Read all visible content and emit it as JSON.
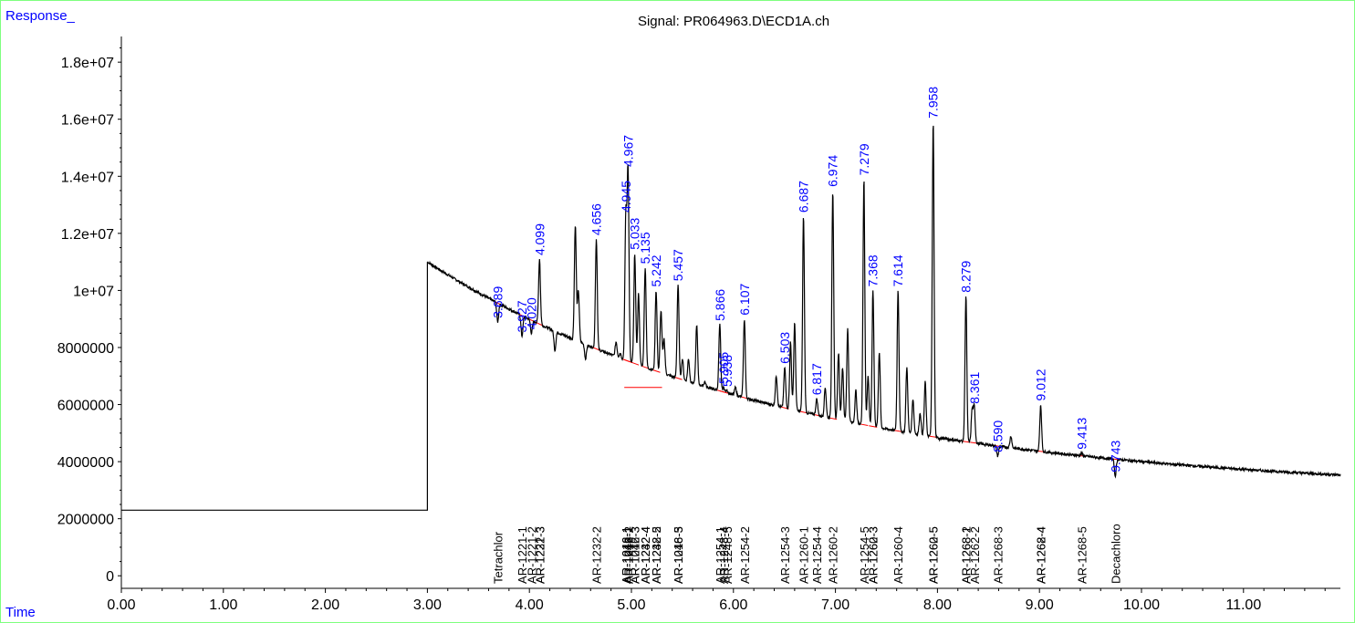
{
  "chart_data": {
    "type": "line",
    "title": "Signal: PR064963.D\\ECD1A.ch",
    "ylabel": "Response_",
    "xlabel": "Time",
    "xlim": [
      0,
      11.95
    ],
    "ylim": [
      -600000,
      18900000
    ],
    "x_ticks": [
      "0.00",
      "1.00",
      "2.00",
      "3.00",
      "4.00",
      "5.00",
      "6.00",
      "7.00",
      "8.00",
      "9.00",
      "10.00",
      "11.00"
    ],
    "x_tick_values": [
      0,
      1,
      2,
      3,
      4,
      5,
      6,
      7,
      8,
      9,
      10,
      11
    ],
    "y_ticks": [
      "0",
      "2000000",
      "4000000",
      "6000000",
      "8000000",
      "1e+07",
      "1.2e+07",
      "1.4e+07",
      "1.6e+07",
      "1.8e+07"
    ],
    "y_tick_values": [
      0,
      2000000,
      4000000,
      6000000,
      8000000,
      10000000,
      12000000,
      14000000,
      16000000,
      18000000
    ],
    "baseline_level": 2300000,
    "trace_start_time": 3.0,
    "trace_start_value": 11000000,
    "trace_end_value": 2900000,
    "labeled_peaks": [
      {
        "rt": 3.689,
        "label": "3.689",
        "height": 8900000
      },
      {
        "rt": 3.927,
        "label": "3.927",
        "height": 8400000
      },
      {
        "rt": 4.02,
        "label": "4.020",
        "height": 8500000
      },
      {
        "rt": 4.099,
        "label": "4.099",
        "height": 11100000
      },
      {
        "rt": 4.656,
        "label": "4.656",
        "height": 11800000
      },
      {
        "rt": 4.945,
        "label": "4.945",
        "height": 12600000
      },
      {
        "rt": 4.967,
        "label": "4.967",
        "height": 14200000
      },
      {
        "rt": 5.033,
        "label": "5.033",
        "height": 11300000
      },
      {
        "rt": 5.135,
        "label": "5.135",
        "height": 10800000
      },
      {
        "rt": 5.242,
        "label": "5.242",
        "height": 10000000
      },
      {
        "rt": 5.457,
        "label": "5.457",
        "height": 10200000
      },
      {
        "rt": 5.866,
        "label": "5.866",
        "height": 8800000
      },
      {
        "rt": 5.905,
        "label": "5.905",
        "height": 6600000
      },
      {
        "rt": 5.938,
        "label": "5.938",
        "height": 6500000
      },
      {
        "rt": 6.107,
        "label": "6.107",
        "height": 9000000
      },
      {
        "rt": 6.503,
        "label": "6.503",
        "height": 7300000
      },
      {
        "rt": 6.687,
        "label": "6.687",
        "height": 12600000
      },
      {
        "rt": 6.817,
        "label": "6.817",
        "height": 6200000
      },
      {
        "rt": 6.974,
        "label": "6.974",
        "height": 13500000
      },
      {
        "rt": 7.279,
        "label": "7.279",
        "height": 13900000
      },
      {
        "rt": 7.368,
        "label": "7.368",
        "height": 10000000
      },
      {
        "rt": 7.614,
        "label": "7.614",
        "height": 10000000
      },
      {
        "rt": 7.958,
        "label": "7.958",
        "height": 15900000
      },
      {
        "rt": 8.279,
        "label": "8.279",
        "height": 9800000
      },
      {
        "rt": 8.361,
        "label": "8.361",
        "height": 5900000
      },
      {
        "rt": 8.59,
        "label": "8.590",
        "height": 4200000
      },
      {
        "rt": 9.012,
        "label": "9.012",
        "height": 6000000
      },
      {
        "rt": 9.413,
        "label": "9.413",
        "height": 4300000
      },
      {
        "rt": 9.743,
        "label": "9.743",
        "height": 3500000
      }
    ],
    "unlabeled_peaks": [
      {
        "rt": 4.25,
        "height": 7900000
      },
      {
        "rt": 4.45,
        "height": 12300000
      },
      {
        "rt": 4.48,
        "height": 10000000
      },
      {
        "rt": 4.55,
        "height": 7600000
      },
      {
        "rt": 4.85,
        "height": 8200000
      },
      {
        "rt": 4.89,
        "height": 7800000
      },
      {
        "rt": 5.07,
        "height": 9900000
      },
      {
        "rt": 5.29,
        "height": 9300000
      },
      {
        "rt": 5.32,
        "height": 8300000
      },
      {
        "rt": 5.5,
        "height": 7600000
      },
      {
        "rt": 5.56,
        "height": 7600000
      },
      {
        "rt": 5.64,
        "height": 8800000
      },
      {
        "rt": 5.72,
        "height": 6800000
      },
      {
        "rt": 6.02,
        "height": 6600000
      },
      {
        "rt": 6.42,
        "height": 7000000
      },
      {
        "rt": 6.56,
        "height": 8200000
      },
      {
        "rt": 6.6,
        "height": 8900000
      },
      {
        "rt": 6.9,
        "height": 6600000
      },
      {
        "rt": 7.03,
        "height": 7800000
      },
      {
        "rt": 7.07,
        "height": 7300000
      },
      {
        "rt": 7.12,
        "height": 8700000
      },
      {
        "rt": 7.2,
        "height": 6500000
      },
      {
        "rt": 7.32,
        "height": 7000000
      },
      {
        "rt": 7.43,
        "height": 7800000
      },
      {
        "rt": 7.7,
        "height": 7300000
      },
      {
        "rt": 7.76,
        "height": 6200000
      },
      {
        "rt": 7.83,
        "height": 5700000
      },
      {
        "rt": 7.88,
        "height": 6800000
      },
      {
        "rt": 8.02,
        "height": 4800000
      },
      {
        "rt": 8.34,
        "height": 5800000
      },
      {
        "rt": 8.72,
        "height": 4900000
      }
    ],
    "compounds": [
      {
        "name": "Tetrachlor",
        "rt": 3.689
      },
      {
        "name": "AR-1221-1",
        "rt": 3.927
      },
      {
        "name": "AR-1221-2",
        "rt": 4.02
      },
      {
        "name": "AR-1221-3",
        "rt": 4.099
      },
      {
        "name": "AR-1232-3",
        "rt": 4.099
      },
      {
        "name": "AR-1232-2",
        "rt": 4.656
      },
      {
        "name": "AR-1016-1",
        "rt": 4.945
      },
      {
        "name": "AR-1242-1",
        "rt": 4.945
      },
      {
        "name": "AR-1248-1",
        "rt": 4.967
      },
      {
        "name": "AR-1016-2",
        "rt": 4.967
      },
      {
        "name": "AR-1242-2",
        "rt": 4.967
      },
      {
        "name": "AR-1016-3",
        "rt": 5.033
      },
      {
        "name": "AR-1242-3",
        "rt": 5.033
      },
      {
        "name": "AR-1232-4",
        "rt": 5.135
      },
      {
        "name": "AR-1242-4",
        "rt": 5.135
      },
      {
        "name": "AR-1232-5",
        "rt": 5.242
      },
      {
        "name": "AR-1248-2",
        "rt": 5.242
      },
      {
        "name": "AR-1016-5",
        "rt": 5.457
      },
      {
        "name": "AR-1248-3",
        "rt": 5.457
      },
      {
        "name": "AR-1254-1",
        "rt": 5.866
      },
      {
        "name": "AR-1248-4",
        "rt": 5.905
      },
      {
        "name": "AR-1248-5",
        "rt": 5.938
      },
      {
        "name": "AR-1254-2",
        "rt": 6.107
      },
      {
        "name": "AR-1254-3",
        "rt": 6.503
      },
      {
        "name": "AR-1260-1",
        "rt": 6.687
      },
      {
        "name": "AR-1254-4",
        "rt": 6.817
      },
      {
        "name": "AR-1260-2",
        "rt": 6.974
      },
      {
        "name": "AR-1254-5",
        "rt": 7.279
      },
      {
        "name": "AR-1260-3",
        "rt": 7.368
      },
      {
        "name": "AR-1262-3",
        "rt": 7.368
      },
      {
        "name": "AR-1260-4",
        "rt": 7.614
      },
      {
        "name": "AR-1260-5",
        "rt": 7.958
      },
      {
        "name": "AR-1262-5",
        "rt": 7.958
      },
      {
        "name": "AR-1268-1",
        "rt": 8.279
      },
      {
        "name": "AR-1268-2",
        "rt": 8.279
      },
      {
        "name": "AR-1262-2",
        "rt": 8.361
      },
      {
        "name": "AR-1268-3",
        "rt": 8.59
      },
      {
        "name": "AR-1262-4",
        "rt": 9.012
      },
      {
        "name": "AR-1268-4",
        "rt": 9.012
      },
      {
        "name": "AR-1268-5",
        "rt": 9.413
      },
      {
        "name": "Decachloro",
        "rt": 9.743
      }
    ],
    "grid": false,
    "colors": {
      "trace": "#000000",
      "baseline": "#ff0000",
      "labels": "#0000ff",
      "frame": "#7fff7f"
    }
  }
}
